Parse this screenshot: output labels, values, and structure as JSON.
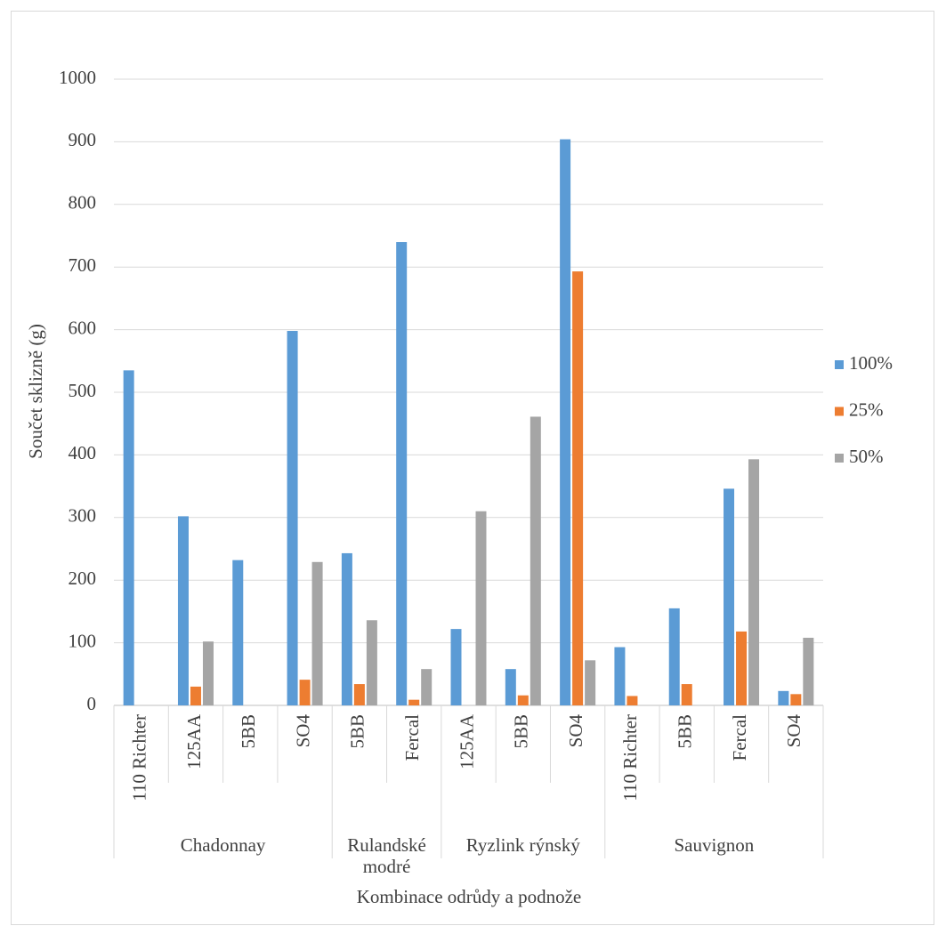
{
  "chart_data": {
    "type": "bar",
    "y_label": "Součet sklizně (g)",
    "x_label": "Kombinace odrůdy a podnože",
    "groups": [
      {
        "label": "Chadonnay",
        "categories": [
          "110 Richter",
          "125AA",
          "5BB",
          "SO4"
        ]
      },
      {
        "label": "Rulandské modré",
        "categories": [
          "5BB",
          "Fercal"
        ]
      },
      {
        "label": "Ryzlink rýnský",
        "categories": [
          "125AA",
          "5BB",
          "SO4"
        ]
      },
      {
        "label": "Sauvignon",
        "categories": [
          "110 Richter",
          "5BB",
          "Fercal",
          "SO4"
        ]
      }
    ],
    "series": [
      {
        "name": "100%",
        "color": "#5b9bd5",
        "values": [
          535,
          302,
          232,
          598,
          243,
          740,
          122,
          58,
          904,
          93,
          155,
          346,
          23
        ]
      },
      {
        "name": "25%",
        "color": "#ed7d31",
        "values": [
          null,
          30,
          null,
          41,
          34,
          9,
          null,
          16,
          693,
          15,
          34,
          118,
          18
        ]
      },
      {
        "name": "50%",
        "color": "#a5a5a5",
        "values": [
          null,
          102,
          null,
          229,
          136,
          58,
          310,
          461,
          72,
          null,
          null,
          393,
          108
        ]
      }
    ],
    "ylim": [
      0,
      1000
    ],
    "yticks": [
      0,
      100,
      200,
      300,
      400,
      500,
      600,
      700,
      800,
      900,
      1000
    ],
    "grid": true,
    "legend": "right"
  }
}
